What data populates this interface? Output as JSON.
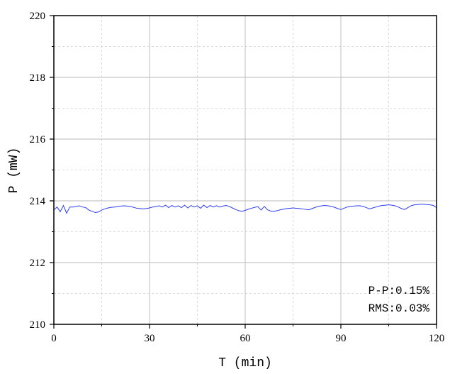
{
  "chart_data": {
    "type": "line",
    "xlabel": "T (min)",
    "ylabel": "P (mW)",
    "xlim": [
      0,
      120
    ],
    "ylim": [
      210,
      220
    ],
    "x_ticks": [
      "0",
      "30",
      "60",
      "90",
      "120"
    ],
    "y_ticks": [
      "210",
      "212",
      "214",
      "216",
      "218",
      "220"
    ],
    "grid": true,
    "series": [
      {
        "color": "#2b3cf0",
        "x": [
          0,
          1,
          2,
          3,
          4,
          5,
          6,
          7,
          8,
          9,
          10,
          11,
          12,
          13,
          14,
          15,
          16,
          17,
          18,
          19,
          20,
          21,
          22,
          23,
          24,
          25,
          26,
          27,
          28,
          29,
          30,
          31,
          32,
          33,
          34,
          35,
          36,
          37,
          38,
          39,
          40,
          41,
          42,
          43,
          44,
          45,
          46,
          47,
          48,
          49,
          50,
          51,
          52,
          53,
          54,
          55,
          56,
          57,
          58,
          59,
          60,
          61,
          62,
          63,
          64,
          65,
          66,
          67,
          68,
          69,
          70,
          71,
          72,
          73,
          74,
          75,
          76,
          77,
          78,
          79,
          80,
          81,
          82,
          83,
          84,
          85,
          86,
          87,
          88,
          89,
          90,
          91,
          92,
          93,
          94,
          95,
          96,
          97,
          98,
          99,
          100,
          101,
          102,
          103,
          104,
          105,
          106,
          107,
          108,
          109,
          110,
          111,
          112,
          113,
          114,
          115,
          116,
          117,
          118,
          119,
          120
        ],
        "values": [
          213.7,
          213.8,
          213.65,
          213.85,
          213.6,
          213.8,
          213.8,
          213.82,
          213.84,
          213.8,
          213.78,
          213.7,
          213.66,
          213.62,
          213.64,
          213.7,
          213.74,
          213.77,
          213.79,
          213.8,
          213.82,
          213.83,
          213.84,
          213.83,
          213.82,
          213.79,
          213.76,
          213.75,
          213.74,
          213.75,
          213.77,
          213.8,
          213.82,
          213.84,
          213.8,
          213.86,
          213.78,
          213.85,
          213.8,
          213.84,
          213.78,
          213.86,
          213.77,
          213.85,
          213.8,
          213.84,
          213.76,
          213.86,
          213.78,
          213.85,
          213.8,
          213.84,
          213.8,
          213.83,
          213.85,
          213.82,
          213.77,
          213.72,
          213.68,
          213.66,
          213.69,
          213.73,
          213.76,
          213.79,
          213.81,
          213.7,
          213.82,
          213.71,
          213.67,
          213.66,
          213.68,
          213.71,
          213.73,
          213.75,
          213.76,
          213.77,
          213.76,
          213.75,
          213.74,
          213.72,
          213.71,
          213.75,
          213.79,
          213.82,
          213.84,
          213.85,
          213.84,
          213.82,
          213.79,
          213.75,
          213.72,
          213.76,
          213.8,
          213.82,
          213.83,
          213.84,
          213.84,
          213.82,
          213.78,
          213.74,
          213.77,
          213.8,
          213.83,
          213.85,
          213.86,
          213.87,
          213.86,
          213.84,
          213.8,
          213.75,
          213.72,
          213.78,
          213.84,
          213.87,
          213.88,
          213.89,
          213.89,
          213.88,
          213.87,
          213.85,
          213.78
        ]
      }
    ],
    "annotations": [
      "P-P:0.15%",
      "RMS:0.03%"
    ]
  }
}
